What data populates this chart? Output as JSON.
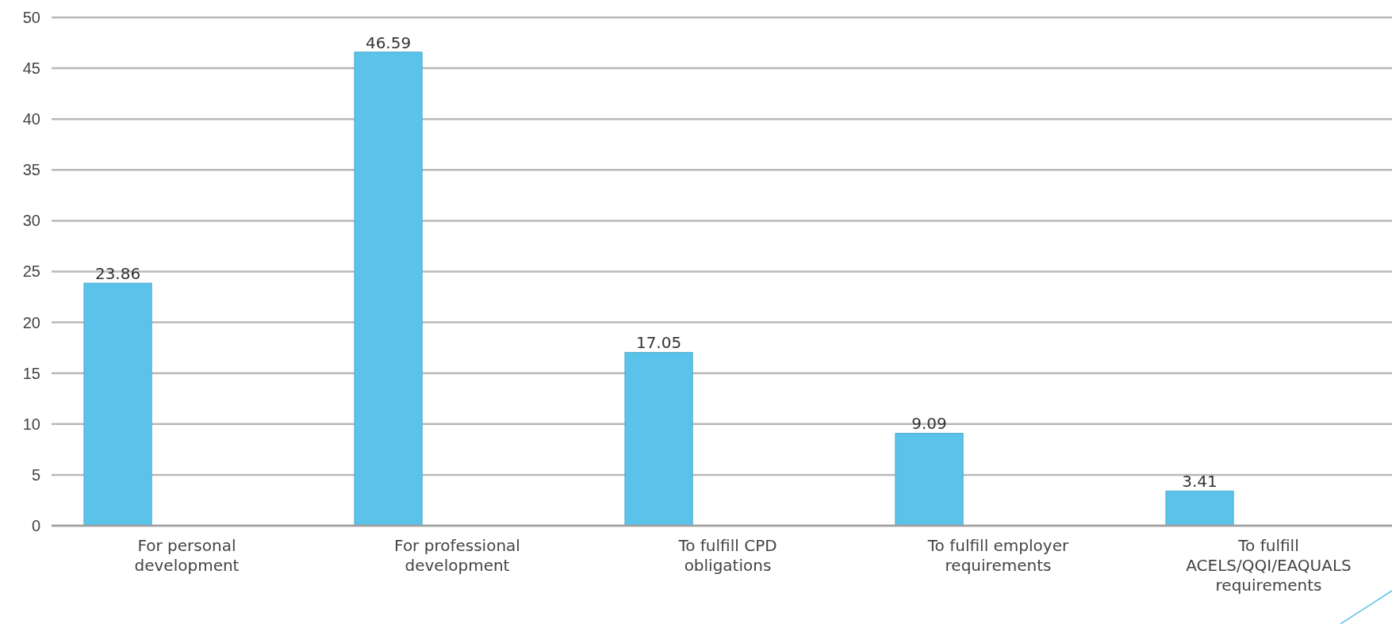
{
  "chart_data": {
    "type": "bar",
    "categories": [
      "For personal development",
      "For professional development",
      "To fulfill CPD obligations",
      "To fulfill employer requirements",
      "To fulfill ACELS/QQI/EAQUALS requirements"
    ],
    "values": [
      23.86,
      46.59,
      17.05,
      9.09,
      3.41
    ],
    "color": "#5bc3ea",
    "ylim": [
      0,
      50
    ],
    "yticks": [
      0,
      5,
      10,
      15,
      20,
      25,
      30,
      35,
      40,
      45,
      50
    ],
    "grid": "y",
    "data_labels": true
  }
}
